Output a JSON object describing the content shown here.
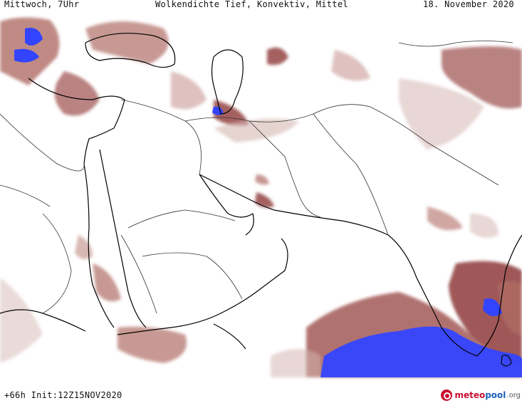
{
  "header": {
    "day_time": "Mittwoch, 7Uhr",
    "title": "Wolkendichte  Tief, Konvektiv, Mittel",
    "date": "18. November 2020"
  },
  "footer": {
    "run_info": "+66h Init:12Z15NOV2020",
    "logo": {
      "part1": "meteo",
      "part2": "pool",
      "part3": ".org"
    }
  },
  "colors": {
    "cloud_cover_light": "#d6b7b3",
    "cloud_cover_medium": "#b06d66",
    "cloud_cover_dense": "#8e3a3a",
    "convective": "#3344ff",
    "coastline": "#000000",
    "border": "#333333",
    "background": "#ffffff"
  }
}
